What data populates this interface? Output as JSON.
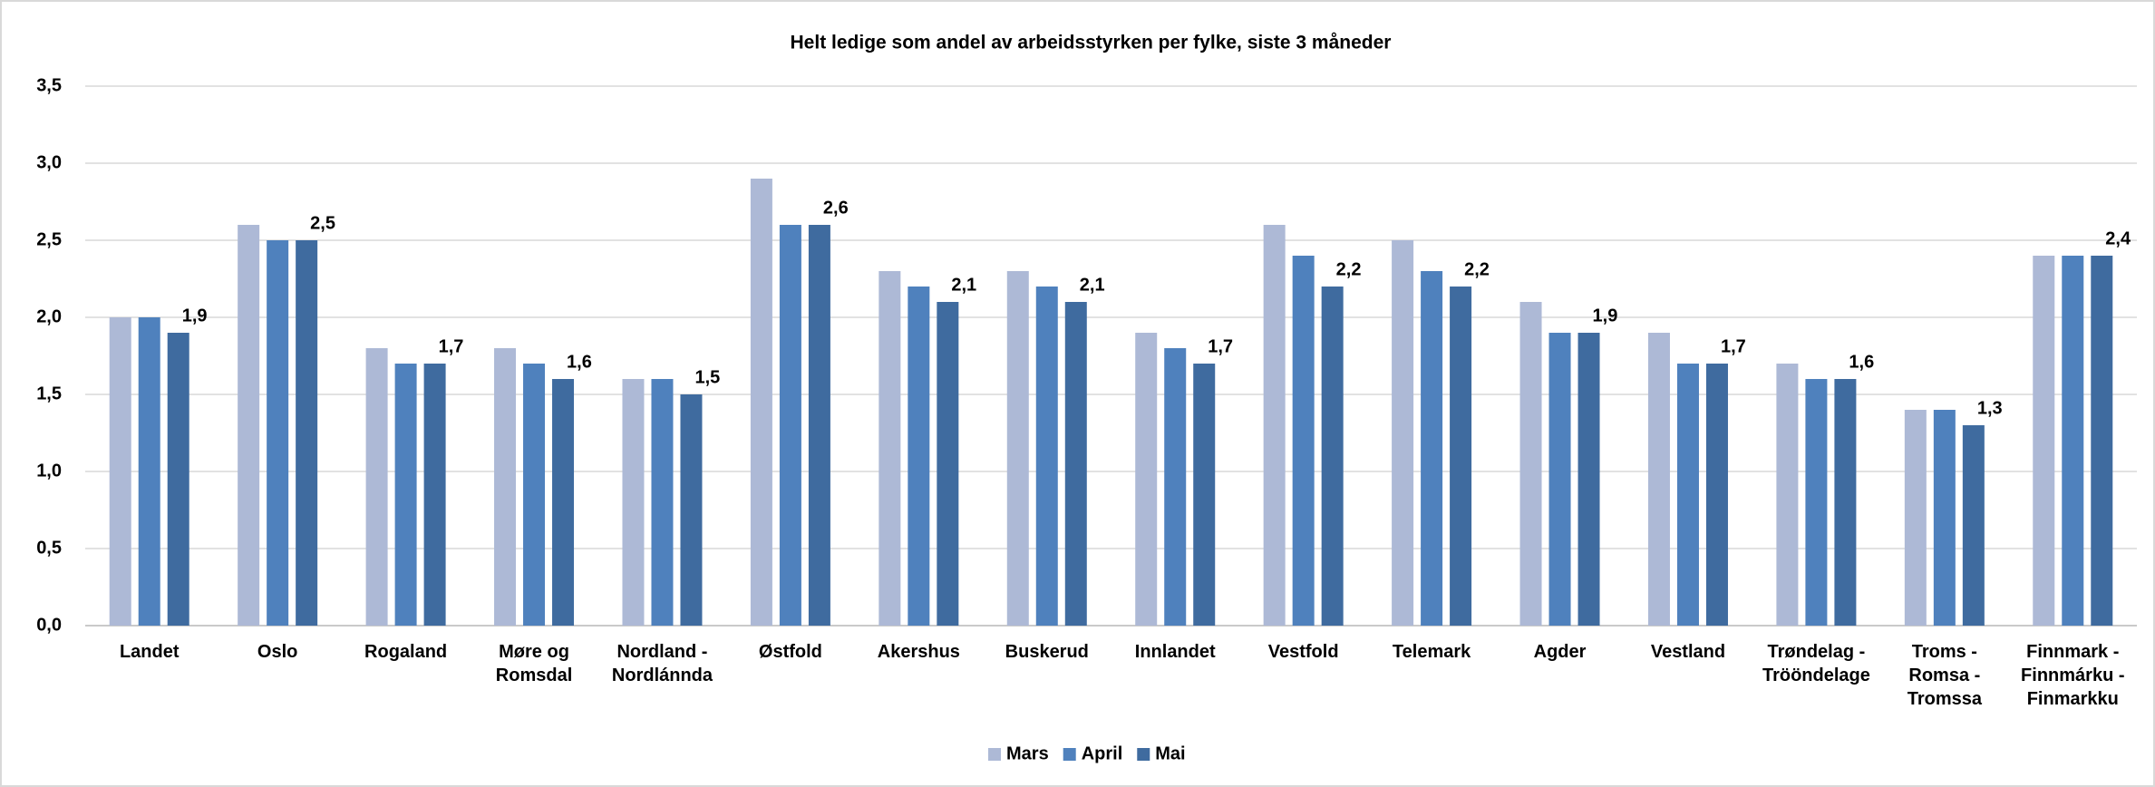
{
  "chart_data": {
    "type": "bar",
    "title": "Helt ledige som andel av arbeidsstyrken per fylke, siste 3 måneder",
    "categories": [
      "Landet",
      "Oslo",
      "Rogaland",
      "Møre og\nRomsdal",
      "Nordland -\nNordlánnda",
      "Østfold",
      "Akershus",
      "Buskerud",
      "Innlandet",
      "Vestfold",
      "Telemark",
      "Agder",
      "Vestland",
      "Trøndelag -\nTrööndelage",
      "Troms -\nRomsa -\nTromssa",
      "Finnmark -\nFinnmárku -\nFinmarkku"
    ],
    "series": [
      {
        "name": "Mars",
        "color": "#adb9d6",
        "values": [
          2.0,
          2.6,
          1.8,
          1.8,
          1.6,
          2.9,
          2.3,
          2.3,
          1.9,
          2.6,
          2.5,
          2.1,
          1.9,
          1.7,
          1.4,
          2.4
        ]
      },
      {
        "name": "April",
        "color": "#4f81bd",
        "values": [
          2.0,
          2.5,
          1.7,
          1.7,
          1.6,
          2.6,
          2.2,
          2.2,
          1.8,
          2.4,
          2.3,
          1.9,
          1.7,
          1.6,
          1.4,
          2.4
        ]
      },
      {
        "name": "Mai",
        "color": "#3f6b9f",
        "values": [
          1.9,
          2.5,
          1.7,
          1.6,
          1.5,
          2.6,
          2.1,
          2.1,
          1.7,
          2.2,
          2.2,
          1.9,
          1.7,
          1.6,
          1.3,
          2.4
        ],
        "value_labels": [
          "1,9",
          "2,5",
          "1,7",
          "1,6",
          "1,5",
          "2,6",
          "2,1",
          "2,1",
          "1,7",
          "2,2",
          "2,2",
          "1,9",
          "1,7",
          "1,6",
          "1,3",
          "2,4"
        ]
      }
    ],
    "ylim": [
      0,
      3.5
    ],
    "yticks": [
      {
        "value": 0,
        "label": "0,0"
      },
      {
        "value": 0.5,
        "label": "0,5"
      },
      {
        "value": 1,
        "label": "1,0"
      },
      {
        "value": 1.5,
        "label": "1,5"
      },
      {
        "value": 2,
        "label": "2,0"
      },
      {
        "value": 2.5,
        "label": "2,5"
      },
      {
        "value": 3,
        "label": "3,0"
      },
      {
        "value": 3.5,
        "label": "3,5"
      }
    ],
    "grid": true,
    "legend": "bottom"
  }
}
